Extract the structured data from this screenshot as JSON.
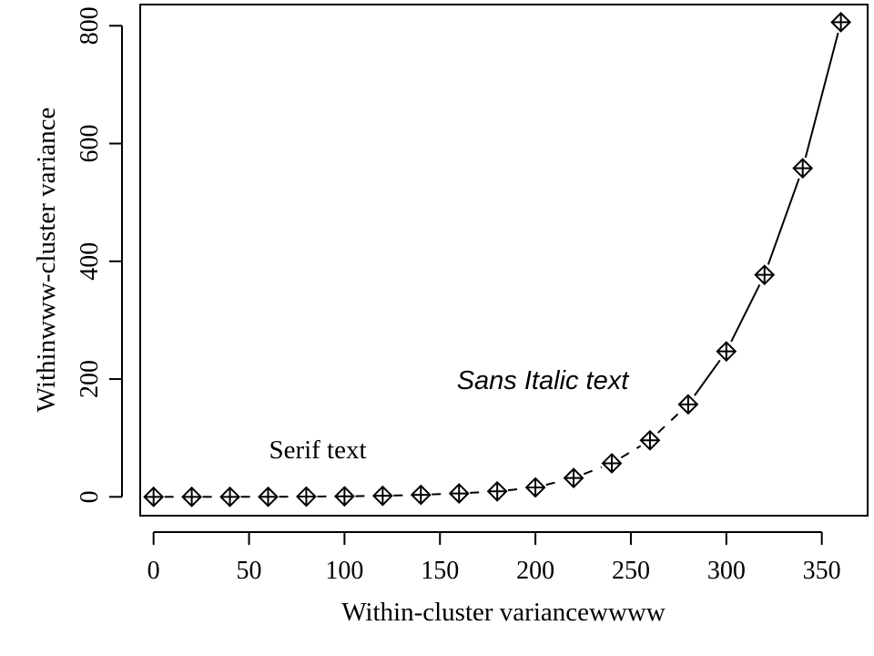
{
  "chart_data": {
    "type": "line",
    "title": "",
    "xlabel": "Within-cluster variancewwww",
    "ylabel": "Withinwww-cluster variance",
    "xlim": [
      -7,
      374
    ],
    "ylim": [
      -32,
      836
    ],
    "x_ticks": [
      0,
      50,
      100,
      150,
      200,
      250,
      300,
      350
    ],
    "y_ticks": [
      0,
      200,
      400,
      600,
      800
    ],
    "x_tick_labels": [
      "0",
      "50",
      "100",
      "150",
      "200",
      "250",
      "300",
      "350"
    ],
    "y_tick_labels": [
      "0",
      "200",
      "400",
      "600",
      "800"
    ],
    "grid": false,
    "legend": "none",
    "marker": "diamond-plus",
    "line_style": "dashed-to-solid",
    "series": [
      {
        "x": [
          0,
          20,
          40,
          60,
          80,
          100,
          120,
          140,
          160,
          180,
          200,
          220,
          240,
          260,
          280,
          300,
          320,
          340,
          360
        ],
        "y": [
          0,
          0,
          0,
          0.1,
          0.4,
          0.9,
          1.8,
          3.4,
          5.8,
          9.3,
          16,
          32,
          57,
          96,
          157,
          247,
          377,
          558,
          806
        ]
      }
    ],
    "annotations": [
      {
        "text": "Serif text",
        "x": 80,
        "y": 78,
        "style": "serif"
      },
      {
        "text": "Sans Italic text",
        "x": 200,
        "y": 198,
        "style": "sans-italic"
      }
    ]
  },
  "colors": {
    "line": "#000000",
    "marker": "#000000",
    "background": "#ffffff"
  }
}
